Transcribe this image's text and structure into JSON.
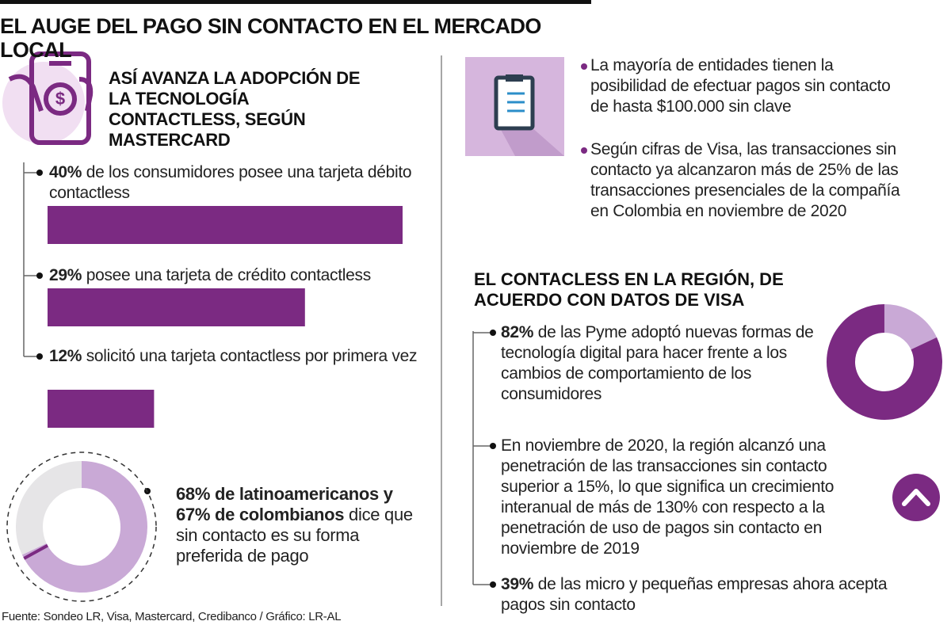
{
  "title": "EL AUGE DEL PAGO SIN CONTACTO EN EL MERCADO LOCAL",
  "mastercard": {
    "heading": "ASÍ AVANZA LA ADOPCIÓN DE LA TECNOLOGÍA CONTACTLESS, SEGÚN MASTERCARD",
    "values": [
      40,
      29,
      12
    ],
    "value_labels": [
      "40%",
      "29%",
      "12%"
    ],
    "texts": [
      "de los consumidores posee una tarjeta débito contactless",
      "posee una tarjeta de crédito contactless",
      "solicitó una tarjeta contactless por primera vez"
    ],
    "color": "#7b2a82"
  },
  "preference": {
    "values": [
      68,
      67
    ],
    "value_labels": [
      "68%",
      "67%"
    ],
    "bold": [
      "de latinoamericanos y",
      "de colombianos"
    ],
    "text": "dice que sin contacto es su forma preferida de pago",
    "colors": [
      "#c9a9d6",
      "#e6e5e7",
      "#7b2a82"
    ]
  },
  "notes": [
    "La mayoría de entidades tienen la posibilidad de efectuar pagos sin contacto de hasta $100.000 sin clave",
    "Según cifras de Visa, las transacciones sin contacto ya alcanzaron más de 25% de las transacciones presenciales de la compañía en Colombia en noviembre de 2020"
  ],
  "region": {
    "heading": "EL CONTACLESS EN LA REGIÓN, DE ACUERDO CON DATOS DE VISA",
    "pyme": {
      "value": 82,
      "value_label": "82%",
      "text": "de las Pyme adoptó nuevas formas de tecnología digital para hacer frente a los cambios de comportamiento de los consumidores",
      "colors": [
        "#7b2a82",
        "#c9a9d6"
      ]
    },
    "penetration": "En noviembre de 2020, la región alcanzó una penetración de las transacciones sin contacto superior a 15%, lo que significa un crecimiento interanual de más de 130% con respecto a la penetración de uso de pagos sin contacto en noviembre de 2019",
    "micro": {
      "value_label": "39%",
      "text": "de las micro y pequeñas empresas ahora acepta pagos sin contacto"
    }
  },
  "source": "Fuente: Sondeo LR, Visa, Mastercard, Credibanco / Gráfico: LR-AL"
}
